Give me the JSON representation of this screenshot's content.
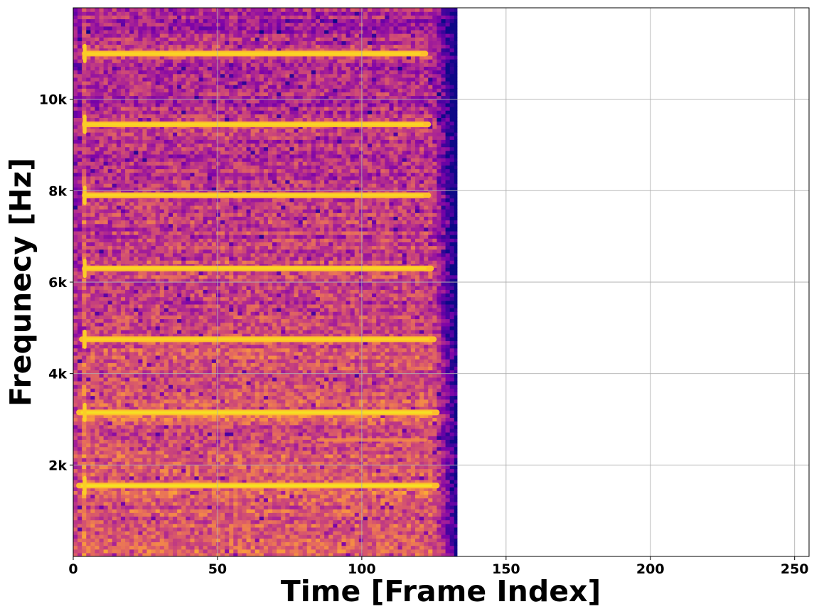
{
  "chart_data": {
    "type": "heatmap",
    "title": "",
    "xlabel": "Time [Frame Index]",
    "ylabel": "Frequnecy [Hz]",
    "xlim": [
      0,
      255
    ],
    "ylim": [
      0,
      12000
    ],
    "xticks": [
      0,
      50,
      100,
      150,
      200,
      250
    ],
    "xtick_labels": [
      "0",
      "50",
      "100",
      "150",
      "200",
      "250"
    ],
    "yticks": [
      2000,
      4000,
      6000,
      8000,
      10000
    ],
    "ytick_labels": [
      "2k",
      "4k",
      "6k",
      "8k",
      "10k"
    ],
    "grid": true,
    "colormap": "plasma",
    "data_extent_frames": [
      0,
      133
    ],
    "onset_frame": 4,
    "fade_start_frame": 124,
    "harmonic_tracks": [
      {
        "name": "harmonic-1",
        "frequency_hz": 1550,
        "start_frame": 2,
        "end_frame": 126
      },
      {
        "name": "harmonic-2",
        "frequency_hz": 3150,
        "start_frame": 2,
        "end_frame": 126
      },
      {
        "name": "harmonic-3",
        "frequency_hz": 4750,
        "start_frame": 3,
        "end_frame": 125
      },
      {
        "name": "harmonic-4",
        "frequency_hz": 6300,
        "start_frame": 4,
        "end_frame": 124
      },
      {
        "name": "harmonic-5",
        "frequency_hz": 7900,
        "start_frame": 4,
        "end_frame": 123
      },
      {
        "name": "harmonic-6",
        "frequency_hz": 9450,
        "start_frame": 4,
        "end_frame": 123
      },
      {
        "name": "harmonic-7",
        "frequency_hz": 11000,
        "start_frame": 4,
        "end_frame": 122
      }
    ],
    "faint_tracks": [
      {
        "name": "faint-track-1",
        "frequency_hz": 2550,
        "start_frame": 85,
        "end_frame": 122
      }
    ],
    "colors": {
      "low": "#0d0887",
      "mid_low": "#6a00a8",
      "mid": "#b12a90",
      "mid_high": "#e16462",
      "high": "#fca636",
      "peak": "#f0f921",
      "grid": "#b0b0b0",
      "axes": "#000000"
    }
  }
}
